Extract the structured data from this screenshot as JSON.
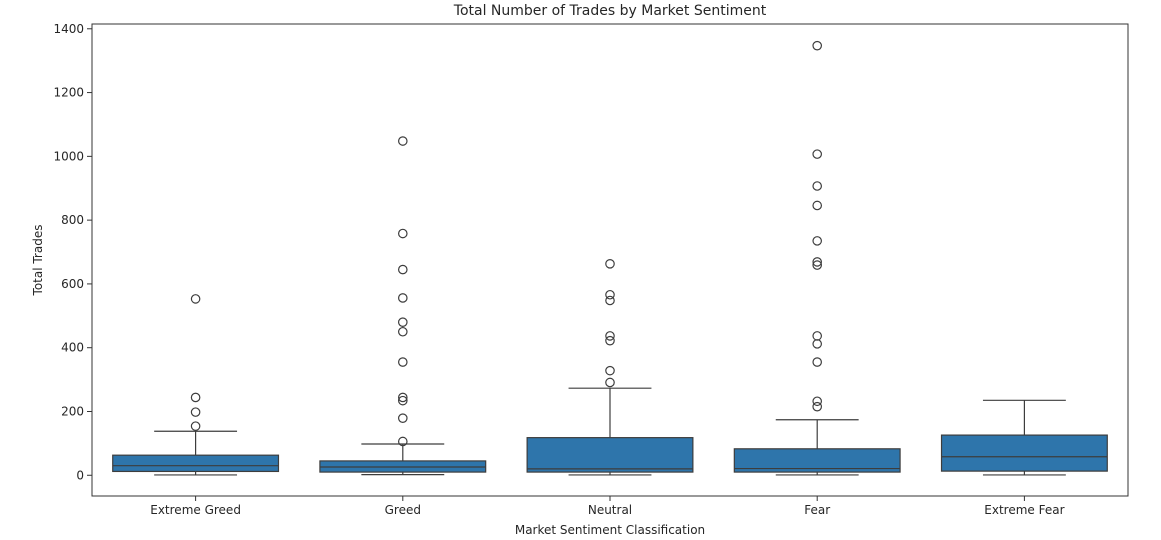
{
  "chart_data": {
    "type": "box",
    "title": "Total Number of Trades by Market Sentiment",
    "xlabel": "Market Sentiment Classification",
    "ylabel": "Total Trades",
    "categories": [
      "Extreme Greed",
      "Greed",
      "Neutral",
      "Fear",
      "Extreme Fear"
    ],
    "ylim": [
      -65,
      1415
    ],
    "yticks": [
      0,
      200,
      400,
      600,
      800,
      1000,
      1200,
      1400
    ],
    "grid": false,
    "box_color": "#2e75ab",
    "line_color": "#3d3d3d",
    "boxes": [
      {
        "category": "Extreme Greed",
        "min": 1,
        "q1": 12,
        "median": 30,
        "q3": 63,
        "max": 138,
        "outliers": [
          154,
          198,
          244,
          553
        ]
      },
      {
        "category": "Greed",
        "min": 2,
        "q1": 10,
        "median": 26,
        "q3": 45,
        "max": 98,
        "outliers": [
          106,
          179,
          234,
          244,
          355,
          450,
          480,
          556,
          645,
          758,
          1048
        ]
      },
      {
        "category": "Neutral",
        "min": 1,
        "q1": 10,
        "median": 20,
        "q3": 118,
        "max": 273,
        "outliers": [
          291,
          328,
          422,
          437,
          548,
          566,
          663
        ]
      },
      {
        "category": "Fear",
        "min": 1,
        "q1": 10,
        "median": 21,
        "q3": 83,
        "max": 174,
        "outliers": [
          215,
          232,
          355,
          412,
          437,
          659,
          669,
          735,
          846,
          907,
          1007,
          1347
        ]
      },
      {
        "category": "Extreme Fear",
        "min": 1,
        "q1": 13,
        "median": 58,
        "q3": 126,
        "max": 235,
        "outliers": []
      }
    ]
  }
}
